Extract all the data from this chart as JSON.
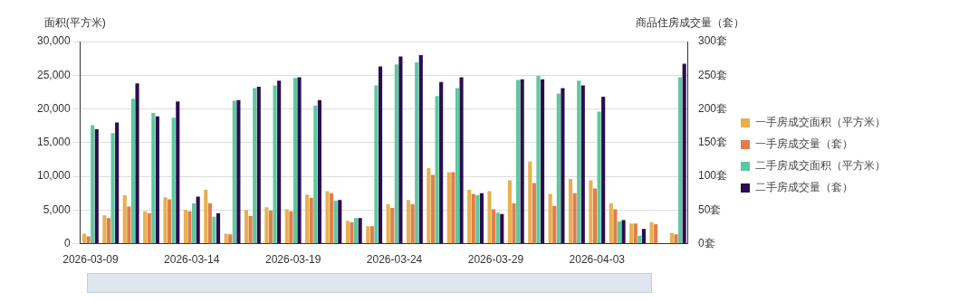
{
  "chart_data": {
    "type": "bar",
    "ylabel": "面积(平方米)",
    "y2label": "商品住房成交量（套）",
    "categories": [
      "2026-03-09",
      null,
      null,
      null,
      null,
      "2026-03-14",
      null,
      null,
      null,
      null,
      "2026-03-19",
      null,
      null,
      null,
      null,
      "2026-03-24",
      null,
      null,
      null,
      null,
      "2026-03-29",
      null,
      null,
      null,
      null,
      "2026-04-03",
      null,
      null,
      null,
      null
    ],
    "series": [
      {
        "name": "一手房成交面积（平方米）",
        "color": "#e8b04f",
        "values": [
          1500,
          4200,
          7200,
          4800,
          6900,
          5000,
          8000,
          1500,
          5000,
          5400,
          5100,
          7300,
          7800,
          3400,
          2600,
          5900,
          6500,
          11200,
          10600,
          8000,
          7800,
          9400,
          12200,
          7400,
          9600,
          9400,
          6000,
          3000,
          3200,
          1600
        ]
      },
      {
        "name": "一手房成交量（套）",
        "color": "#e07e4a",
        "axis": "y2",
        "values": [
          11,
          38,
          55,
          45,
          66,
          48,
          60,
          14,
          41,
          49,
          48,
          68,
          75,
          32,
          26,
          53,
          59,
          102,
          106,
          74,
          51,
          60,
          90,
          56,
          75,
          82,
          51,
          30,
          29,
          14
        ]
      },
      {
        "name": "二手房成交面积（平方米）",
        "color": "#5ec8a0",
        "values": [
          17600,
          16400,
          21500,
          19400,
          18700,
          6000,
          4000,
          21200,
          23100,
          23500,
          24600,
          20500,
          6400,
          3800,
          23500,
          26600,
          26900,
          21900,
          23100,
          7200,
          4600,
          24300,
          24900,
          22300,
          24200,
          19600,
          3300,
          1200,
          null,
          24700
        ]
      },
      {
        "name": "二手房成交量（套）",
        "color": "#2a0e4e",
        "axis": "y2",
        "values": [
          170,
          180,
          238,
          189,
          211,
          70,
          45,
          213,
          233,
          242,
          247,
          213,
          65,
          38,
          263,
          278,
          280,
          240,
          247,
          75,
          44,
          244,
          244,
          231,
          235,
          218,
          35,
          22,
          null,
          267
        ]
      }
    ],
    "ylim": [
      0,
      30000
    ],
    "yticks": [
      {
        "value": 0,
        "label": "0"
      },
      {
        "value": 5000,
        "label": "5,000"
      },
      {
        "value": 10000,
        "label": "10,000"
      },
      {
        "value": 15000,
        "label": "15,000"
      },
      {
        "value": 20000,
        "label": "20,000"
      },
      {
        "value": 25000,
        "label": "25,000"
      },
      {
        "value": 30000,
        "label": "30,000"
      }
    ],
    "y2lim": [
      0,
      300
    ],
    "y2ticks": [
      {
        "value": 0,
        "label": "0套"
      },
      {
        "value": 50,
        "label": "50套"
      },
      {
        "value": 100,
        "label": "100套"
      },
      {
        "value": 150,
        "label": "150套"
      },
      {
        "value": 200,
        "label": "200套"
      },
      {
        "value": 250,
        "label": "250套"
      },
      {
        "value": 300,
        "label": "300套"
      }
    ],
    "grid": "y",
    "legend": "right"
  }
}
